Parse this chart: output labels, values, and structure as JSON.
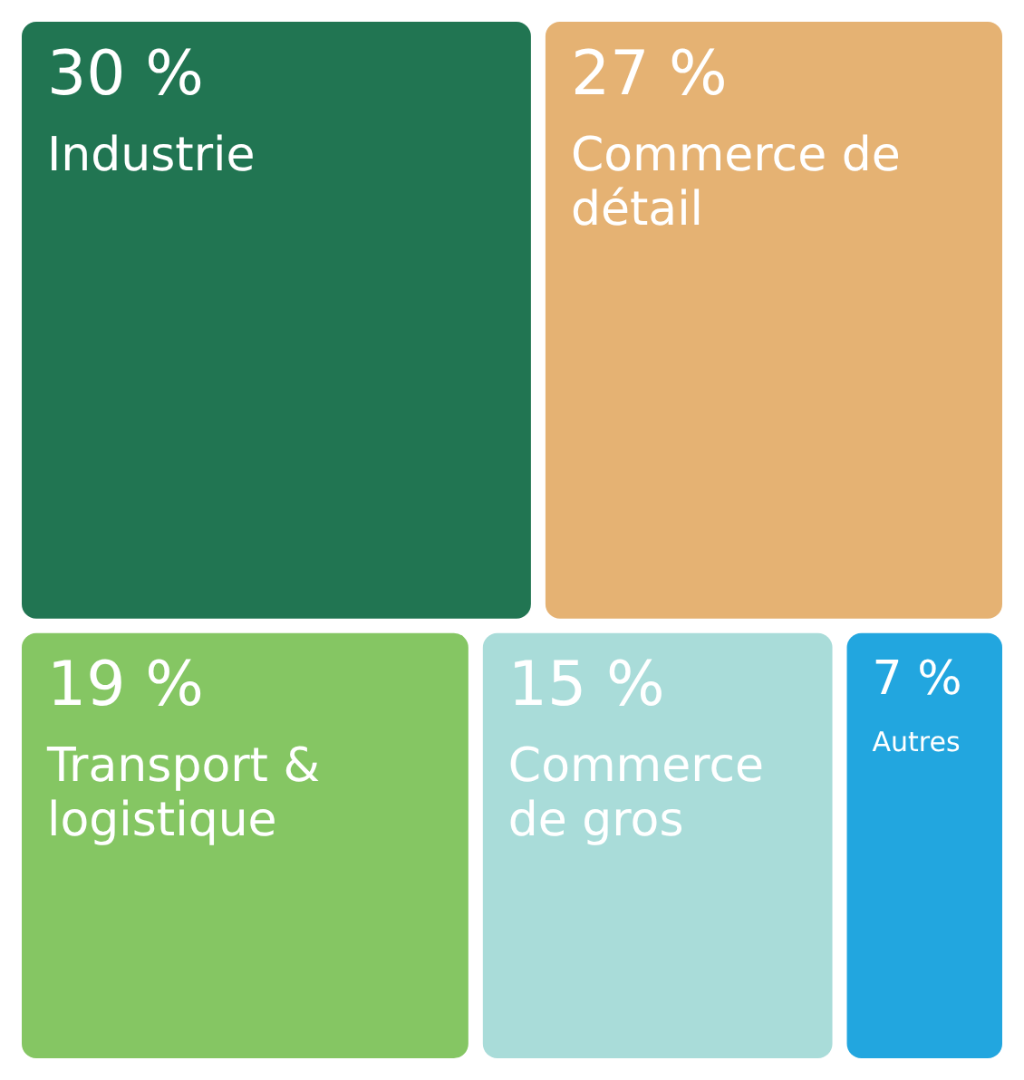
{
  "chart_data": {
    "type": "other",
    "categories": [
      "Industrie",
      "Commerce de détail",
      "Transport & logistique",
      "Commerce de gros",
      "Autres"
    ],
    "values": [
      30,
      27,
      19,
      15,
      7
    ],
    "value_labels": [
      "30 %",
      "27 %",
      "19 %",
      "15 %",
      "7 %"
    ],
    "colors": [
      "#217552",
      "#e5b273",
      "#85c663",
      "#a9dcd9",
      "#22a6df"
    ]
  }
}
